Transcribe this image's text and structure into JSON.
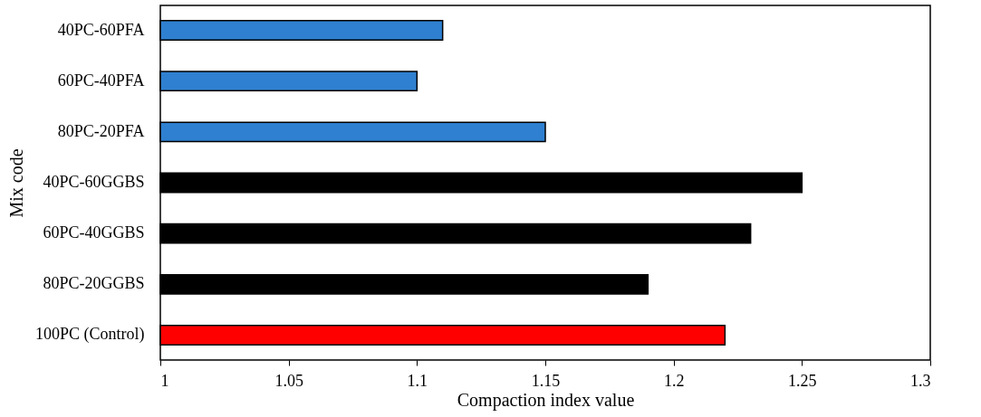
{
  "chart_data": {
    "type": "bar",
    "orientation": "horizontal",
    "xlabel": "Compaction index value",
    "ylabel": "Mix code",
    "categories": [
      "40PC-60PFA",
      "60PC-40PFA",
      "80PC-20PFA",
      "40PC-60GGBS",
      "60PC-40GGBS",
      "80PC-20GGBS",
      "100PC (Control)"
    ],
    "values": [
      1.11,
      1.1,
      1.15,
      1.25,
      1.23,
      1.19,
      1.22
    ],
    "colors": [
      "#2f80d0",
      "#2f80d0",
      "#2f80d0",
      "#000000",
      "#000000",
      "#000000",
      "#ff0000"
    ],
    "xlim": [
      1,
      1.3
    ],
    "xticks": [
      1,
      1.05,
      1.1,
      1.15,
      1.2,
      1.25,
      1.3
    ]
  }
}
